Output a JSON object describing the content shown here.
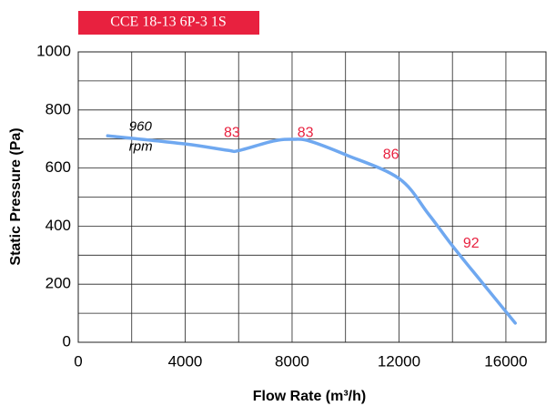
{
  "chart_data": {
    "type": "line",
    "title": "CCE 18-13 6P-3 1S",
    "title_color": "#e8213f",
    "x_label": "Flow Rate (m³/h)",
    "y_label": "Static Pressure (Pa)",
    "xlim": [
      0,
      17500
    ],
    "ylim": [
      0,
      1000
    ],
    "xticks": [
      0,
      4000,
      8000,
      12000,
      16000
    ],
    "yticks": [
      0,
      200,
      400,
      600,
      800,
      1000
    ],
    "x_minor_ticks": [
      2000,
      6000,
      10000,
      14000
    ],
    "y_minor_ticks": [
      100,
      300,
      500,
      700,
      900
    ],
    "grid": true,
    "series": [
      {
        "name": "960 rpm",
        "color": "#6fa8f0",
        "x": [
          1100,
          4000,
          5600,
          6000,
          7300,
          8000,
          8650,
          10000,
          12000,
          13100,
          14000,
          15100,
          16350
        ],
        "values": [
          711,
          683,
          661,
          660,
          693,
          699,
          693,
          646,
          564,
          442,
          332,
          207,
          66
        ]
      }
    ],
    "speed_label": {
      "lines": [
        "960",
        "rpm"
      ],
      "x": 1900,
      "y": 710
    },
    "annotations": [
      {
        "text": "83",
        "x": 5750,
        "y": 720
      },
      {
        "text": "83",
        "x": 8500,
        "y": 720
      },
      {
        "text": "86",
        "x": 11700,
        "y": 645
      },
      {
        "text": "92",
        "x": 14700,
        "y": 340
      }
    ],
    "annotation_color": "#e8213f"
  }
}
